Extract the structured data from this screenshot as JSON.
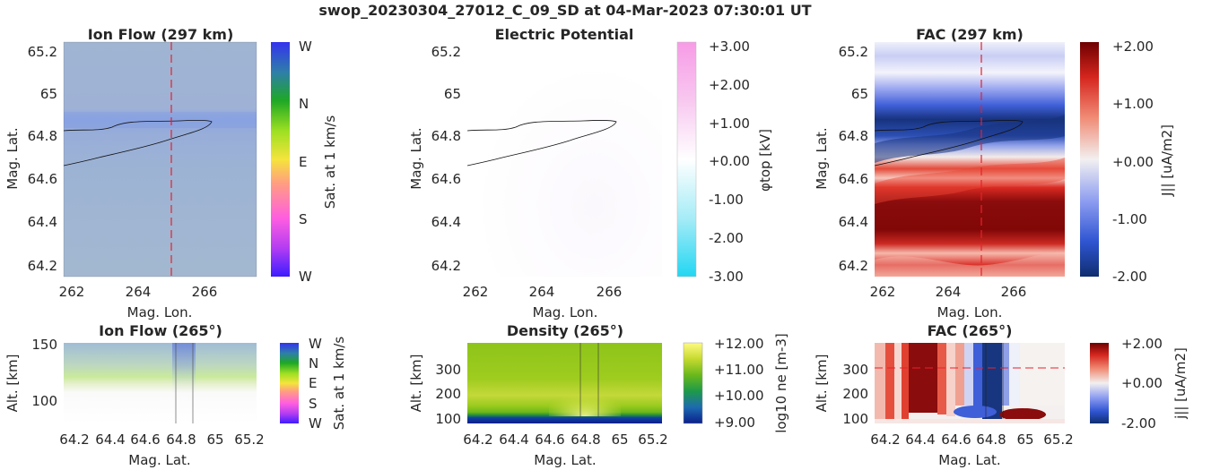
{
  "suptitle": "swop_20230304_27012_C_09_SD at 04-Mar-2023 07:30:01 UT",
  "chart_data": [
    {
      "type": "heatmap",
      "title": "Ion Flow (297 km)",
      "xlabel": "Mag. Lon.",
      "ylabel": "Mag. Lat.",
      "xlim": [
        261.6,
        267.4
      ],
      "ylim": [
        64.15,
        65.25
      ],
      "xticks": [
        "262",
        "264",
        "266"
      ],
      "yticks": [
        "64.2",
        "64.4",
        "64.6",
        "64.8",
        "65",
        "65.2"
      ],
      "colorbar": {
        "label": "Sat. at 1 km/s",
        "ticks": [
          "W",
          "S",
          "E",
          "N",
          "W"
        ]
      },
      "cut_line": "Mag. Lon. 265"
    },
    {
      "type": "heatmap",
      "title": "Electric Potential",
      "xlabel": "Mag. Lon.",
      "ylabel": "Mag. Lat.",
      "xlim": [
        261.6,
        267.4
      ],
      "ylim": [
        64.15,
        65.25
      ],
      "xticks": [
        "262",
        "264",
        "266"
      ],
      "yticks": [
        "64.2",
        "64.4",
        "64.6",
        "64.8",
        "65",
        "65.2"
      ],
      "colorbar": {
        "label": "φtop [kV]",
        "range": [
          -3,
          3
        ],
        "ticks": [
          "-3.00",
          "-2.00",
          "-1.00",
          "+0.00",
          "+1.00",
          "+2.00",
          "+3.00"
        ]
      }
    },
    {
      "type": "heatmap",
      "title": "FAC (297 km)",
      "xlabel": "Mag. Lon.",
      "ylabel": "Mag. Lat.",
      "xlim": [
        261.6,
        267.4
      ],
      "ylim": [
        64.15,
        65.25
      ],
      "xticks": [
        "262",
        "264",
        "266"
      ],
      "yticks": [
        "64.2",
        "64.4",
        "64.6",
        "64.8",
        "65",
        "65.2"
      ],
      "colorbar": {
        "label": "J|| [uA/m2]",
        "range": [
          -2,
          2
        ],
        "ticks": [
          "-2.00",
          "-1.00",
          "+0.00",
          "+1.00",
          "+2.00"
        ]
      },
      "cut_line": "Mag. Lon. 265"
    },
    {
      "type": "heatmap",
      "title": "Ion Flow (265°)",
      "xlabel": "Mag. Lat.",
      "ylabel": "Alt. [km]",
      "xlim": [
        64.15,
        65.25
      ],
      "ylim": [
        80,
        150
      ],
      "xticks": [
        "64.2",
        "64.4",
        "64.6",
        "64.8",
        "65",
        "65.2"
      ],
      "yticks": [
        "100",
        "150"
      ],
      "colorbar": {
        "label": "Sat. at 1 km/s",
        "ticks": [
          "W",
          "S",
          "E",
          "N",
          "W"
        ]
      }
    },
    {
      "type": "heatmap",
      "title": "Density (265°)",
      "xlabel": "Mag. Lat.",
      "ylabel": "Alt. [km]",
      "xlim": [
        64.15,
        65.25
      ],
      "ylim": [
        80,
        390
      ],
      "xticks": [
        "64.2",
        "64.4",
        "64.6",
        "64.8",
        "65",
        "65.2"
      ],
      "yticks": [
        "100",
        "200",
        "300"
      ],
      "colorbar": {
        "label": "log10 ne [m-3]",
        "range": [
          9,
          12
        ],
        "ticks": [
          "+9.00",
          "+10.00",
          "+11.00",
          "+12.00"
        ]
      }
    },
    {
      "type": "heatmap",
      "title": "FAC (265°)",
      "xlabel": "Mag. Lat.",
      "ylabel": "Alt. [km]",
      "xlim": [
        64.15,
        65.25
      ],
      "ylim": [
        80,
        390
      ],
      "xticks": [
        "64.2",
        "64.4",
        "64.6",
        "64.8",
        "65",
        "65.2"
      ],
      "yticks": [
        "100",
        "200",
        "300"
      ],
      "colorbar": {
        "label": "j|| [uA/m2]",
        "range": [
          -2,
          2
        ],
        "ticks": [
          "-2.00",
          "+0.00",
          "+2.00"
        ]
      },
      "cut_line": "Alt. 297 km"
    }
  ]
}
